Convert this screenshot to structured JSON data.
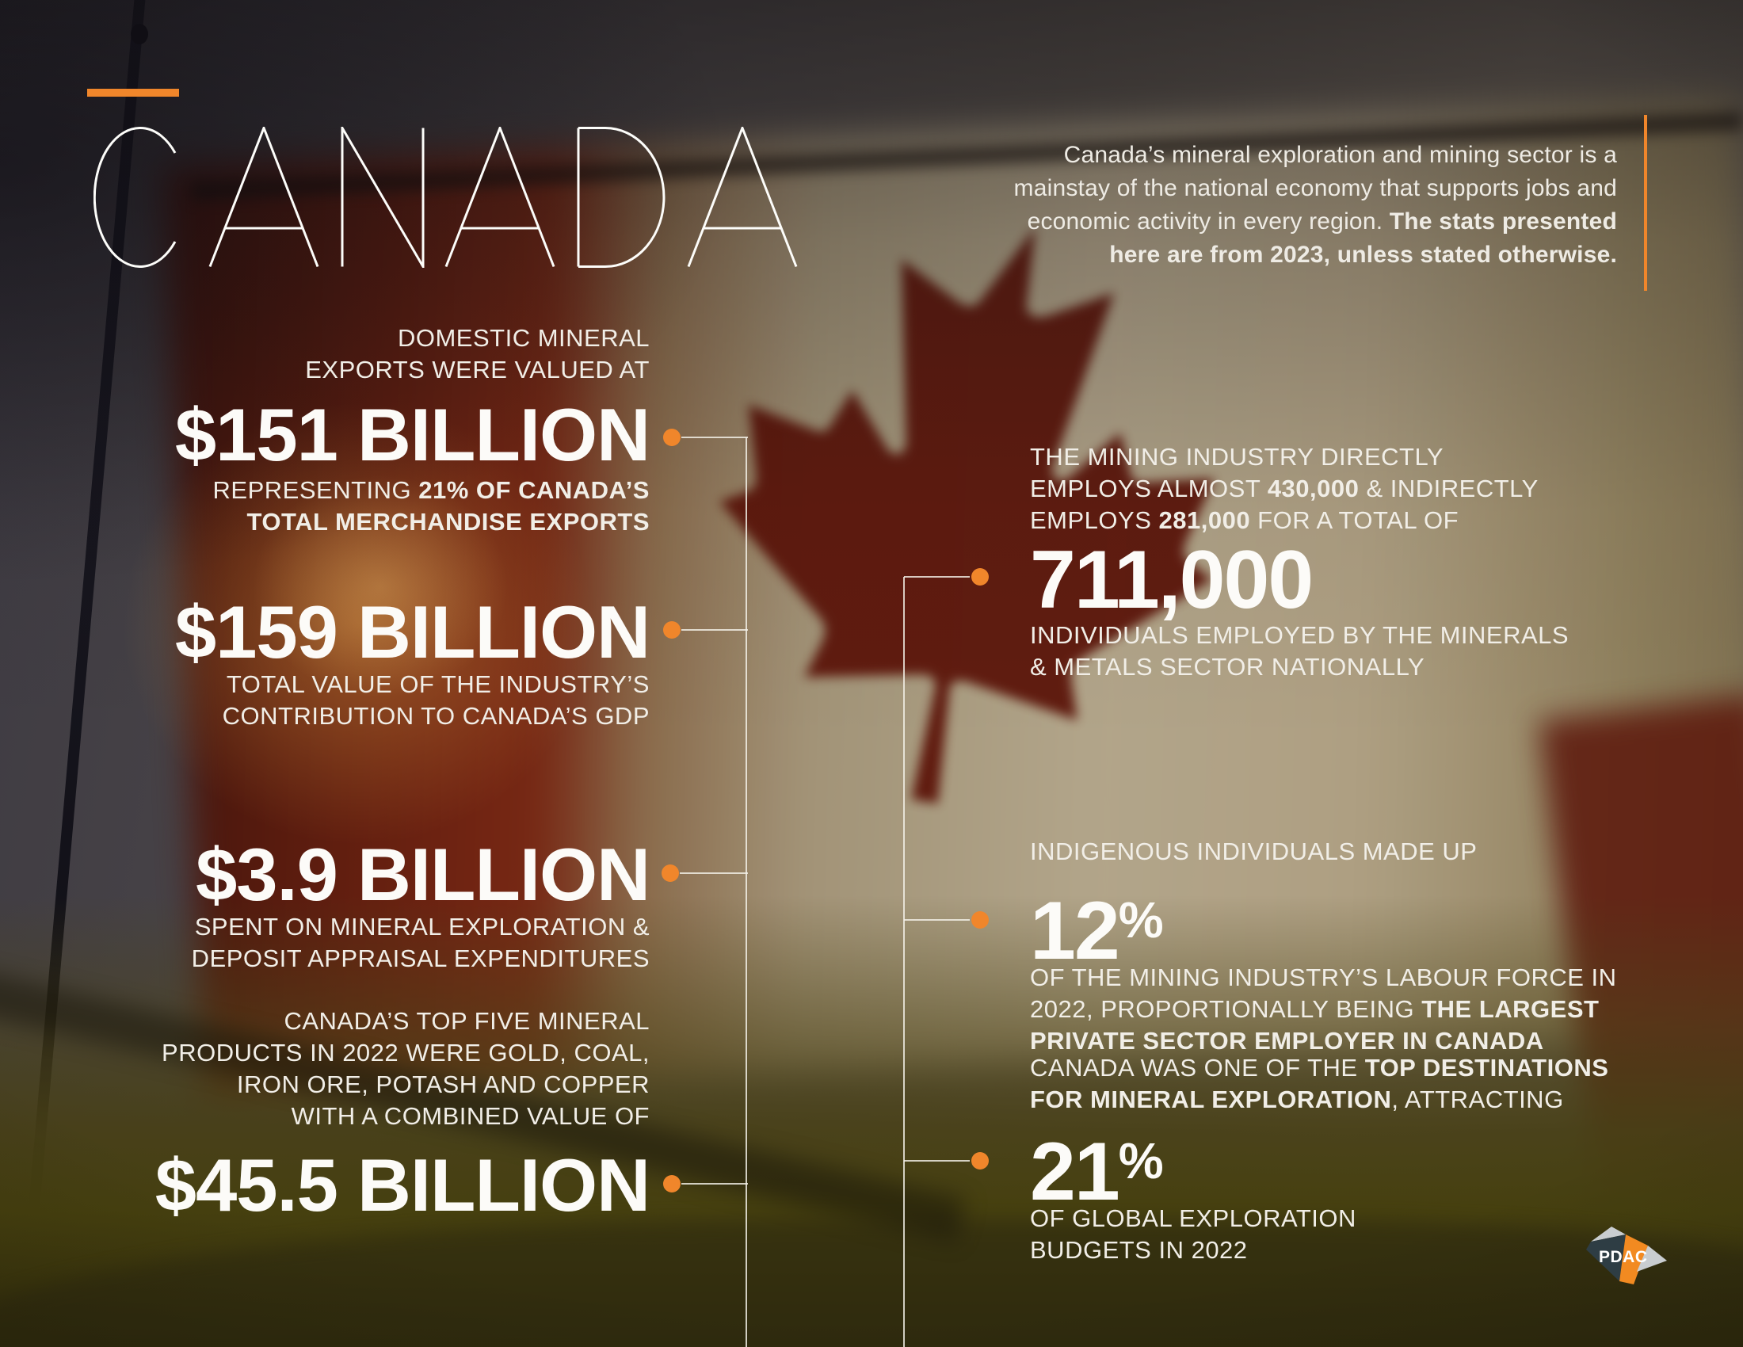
{
  "brand": {
    "title": "CANADA",
    "accent_color": "#F0862B",
    "logo_text": "PDAC"
  },
  "intro": {
    "lines": [
      [
        {
          "t": "Canada’s mineral exploration and mining sector is a"
        }
      ],
      [
        {
          "t": "mainstay of the national economy that supports jobs and"
        }
      ],
      [
        {
          "t": "economic activity in every region. "
        },
        {
          "t": "The stats presented",
          "b": true
        }
      ],
      [
        {
          "t": "here are from 2023, unless stated otherwise.",
          "b": true
        }
      ]
    ]
  },
  "left_stats": [
    {
      "header": [
        [
          {
            "t": "DOMESTIC MINERAL"
          }
        ],
        [
          {
            "t": "EXPORTS WERE VALUED AT"
          }
        ]
      ],
      "value": [
        [
          {
            "t": "$151 BILLION",
            "b": true
          }
        ]
      ],
      "sub": [
        [
          {
            "t": "REPRESENTING "
          },
          {
            "t": "21% OF CANADA’S",
            "b": true
          }
        ],
        [
          {
            "t": "TOTAL MERCHANDISE EXPORTS",
            "b": true
          }
        ]
      ]
    },
    {
      "header": [],
      "value": [
        [
          {
            "t": "$159 BILLION",
            "b": true
          }
        ]
      ],
      "sub": [
        [
          {
            "t": "TOTAL VALUE OF THE INDUSTRY’S"
          }
        ],
        [
          {
            "t": "CONTRIBUTION TO CANADA’S GDP"
          }
        ]
      ]
    },
    {
      "header": [],
      "value": [
        [
          {
            "t": "$3.9 BILLION",
            "b": true
          }
        ]
      ],
      "sub": [
        [
          {
            "t": "SPENT ON MINERAL EXPLORATION &"
          }
        ],
        [
          {
            "t": "DEPOSIT APPRAISAL EXPENDITURES"
          }
        ]
      ]
    },
    {
      "header": [
        [
          {
            "t": "CANADA’S TOP FIVE MINERAL"
          }
        ],
        [
          {
            "t": "PRODUCTS IN 2022 WERE GOLD, COAL,"
          }
        ],
        [
          {
            "t": "IRON ORE, POTASH AND COPPER"
          }
        ],
        [
          {
            "t": "WITH A COMBINED VALUE OF"
          }
        ]
      ],
      "value": [
        [
          {
            "t": "$45.5 BILLION",
            "b": true
          }
        ]
      ],
      "sub": []
    }
  ],
  "right_stats": [
    {
      "header": [
        [
          {
            "t": "THE MINING INDUSTRY DIRECTLY"
          }
        ],
        [
          {
            "t": "EMPLOYS ALMOST "
          },
          {
            "t": "430,000",
            "b": true
          },
          {
            "t": " & INDIRECTLY"
          }
        ],
        [
          {
            "t": "EMPLOYS "
          },
          {
            "t": "281,000",
            "b": true
          },
          {
            "t": " FOR A TOTAL OF"
          }
        ]
      ],
      "value": [
        [
          {
            "t": "711,000",
            "b": true
          }
        ]
      ],
      "sub": [
        [
          {
            "t": "INDIVIDUALS EMPLOYED BY THE MINERALS"
          }
        ],
        [
          {
            "t": "& METALS SECTOR NATIONALLY"
          }
        ]
      ]
    },
    {
      "header": [
        [
          {
            "t": "INDIGENOUS INDIVIDUALS MADE UP"
          }
        ]
      ],
      "value": [
        [
          {
            "t": "12",
            "b": true
          },
          {
            "t": "%",
            "b": true,
            "c": "pct"
          }
        ]
      ],
      "sub": [
        [
          {
            "t": "OF THE MINING INDUSTRY’S LABOUR FORCE IN"
          }
        ],
        [
          {
            "t": "2022, PROPORTIONALLY BEING "
          },
          {
            "t": "THE LARGEST",
            "b": true
          }
        ],
        [
          {
            "t": "PRIVATE SECTOR EMPLOYER IN CANADA",
            "b": true
          }
        ]
      ]
    },
    {
      "header": [
        [
          {
            "t": "CANADA WAS ONE OF THE "
          },
          {
            "t": "TOP DESTINATIONS",
            "b": true
          }
        ],
        [
          {
            "t": "FOR MINERAL EXPLORATION",
            "b": true
          },
          {
            "t": ", ATTRACTING"
          }
        ]
      ],
      "value": [
        [
          {
            "t": "21",
            "b": true
          },
          {
            "t": "%",
            "b": true,
            "c": "pct"
          }
        ]
      ],
      "sub": [
        [
          {
            "t": "OF GLOBAL EXPLORATION"
          }
        ],
        [
          {
            "t": "BUDGETS IN 2022"
          }
        ]
      ]
    }
  ]
}
